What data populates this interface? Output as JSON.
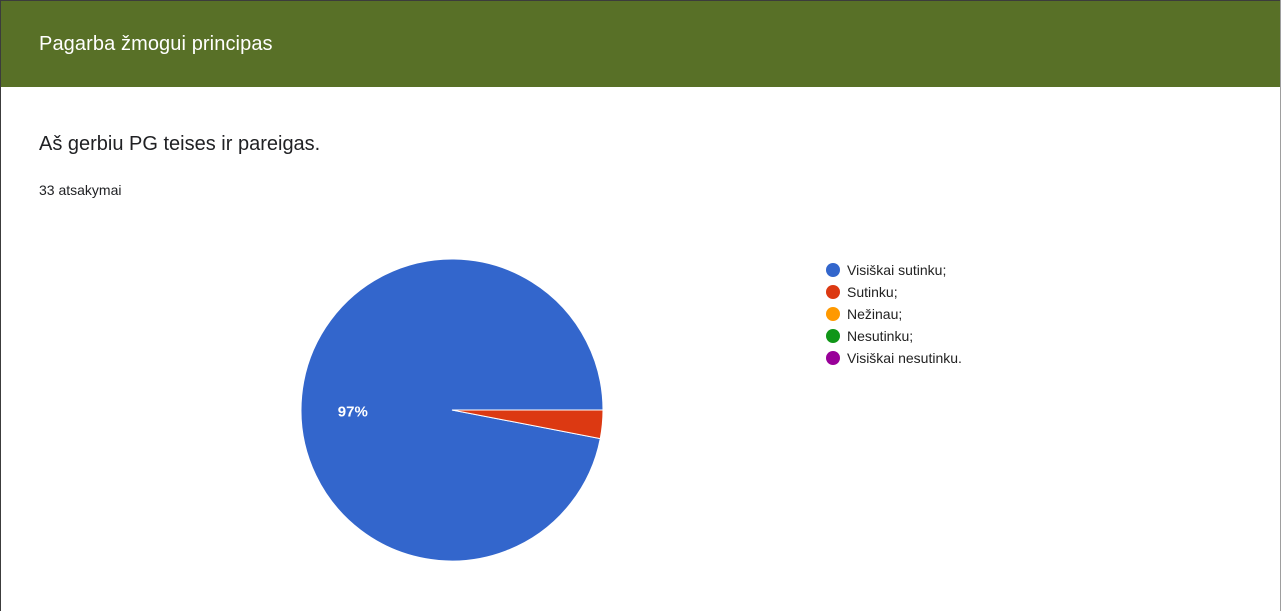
{
  "section": {
    "title": "Pagarba žmogui principas",
    "color": "#587027"
  },
  "question": {
    "title": "Aš gerbiu PG teises ir pareigas.",
    "responses": "33 atsakymai"
  },
  "chart_data": {
    "type": "pie",
    "title": "",
    "legend_position": "right",
    "slices": [
      {
        "label": "Visiškai sutinku;",
        "value": 32,
        "percent_label": "97%",
        "color": "#3366cc"
      },
      {
        "label": "Sutinku;",
        "value": 1,
        "percent_label": "",
        "color": "#dc3912"
      },
      {
        "label": "Nežinau;",
        "value": 0,
        "percent_label": "",
        "color": "#ff9900"
      },
      {
        "label": "Nesutinku;",
        "value": 0,
        "percent_label": "",
        "color": "#109618"
      },
      {
        "label": "Visiškai nesutinku.",
        "value": 0,
        "percent_label": "",
        "color": "#990099"
      }
    ]
  }
}
